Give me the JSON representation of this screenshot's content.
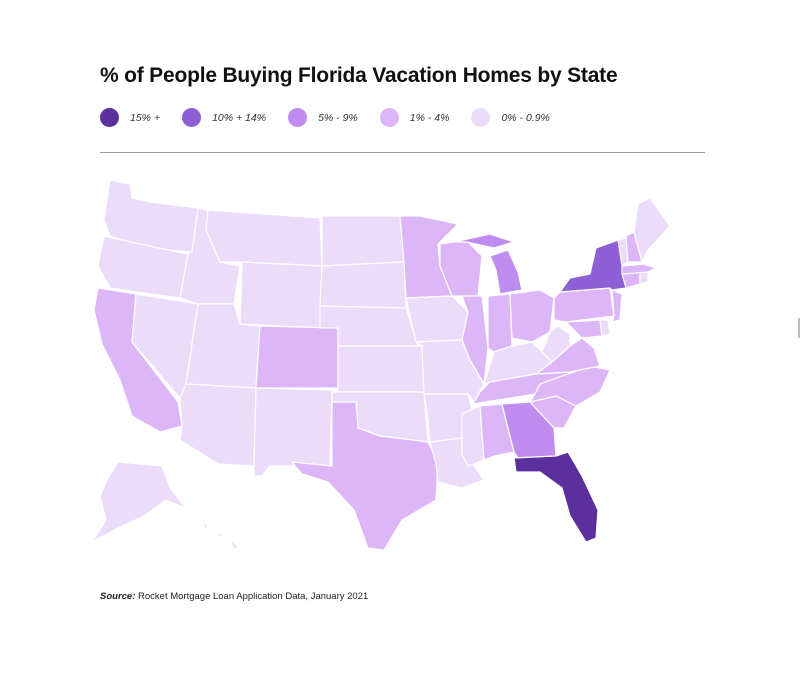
{
  "title": "% of People Buying Florida Vacation Homes by State",
  "legend": [
    {
      "label": "15% +",
      "color": "#5b2f9c"
    },
    {
      "label": "10% + 14%",
      "color": "#8e60d6"
    },
    {
      "label": "5% - 9%",
      "color": "#bf8cef"
    },
    {
      "label": "1% - 4%",
      "color": "#ddb6f7"
    },
    {
      "label": "0% - 0.9%",
      "color": "#ebdcf9"
    }
  ],
  "map_data": {
    "type": "choropleth",
    "region": "United States",
    "states": {
      "15% +": [
        "FL"
      ],
      "10% + 14%": [
        "NY"
      ],
      "5% - 9%": [
        "MI",
        "GA"
      ],
      "1% - 4%": [
        "CA",
        "TX",
        "CO",
        "MN",
        "WI",
        "IL",
        "IN",
        "OH",
        "PA",
        "NJ",
        "MD",
        "VA",
        "NC",
        "SC",
        "TN",
        "AL",
        "MA",
        "CT",
        "NH"
      ],
      "0% - 0.9%": [
        "WA",
        "OR",
        "ID",
        "MT",
        "WY",
        "NV",
        "UT",
        "AZ",
        "NM",
        "ND",
        "SD",
        "NE",
        "KS",
        "OK",
        "IA",
        "MO",
        "AR",
        "LA",
        "MS",
        "KY",
        "WV",
        "DE",
        "VT",
        "ME",
        "RI",
        "AK",
        "HI"
      ]
    }
  },
  "source": {
    "label": "Source:",
    "text": "Rocket Mortgage Loan Application Data, January 2021"
  }
}
